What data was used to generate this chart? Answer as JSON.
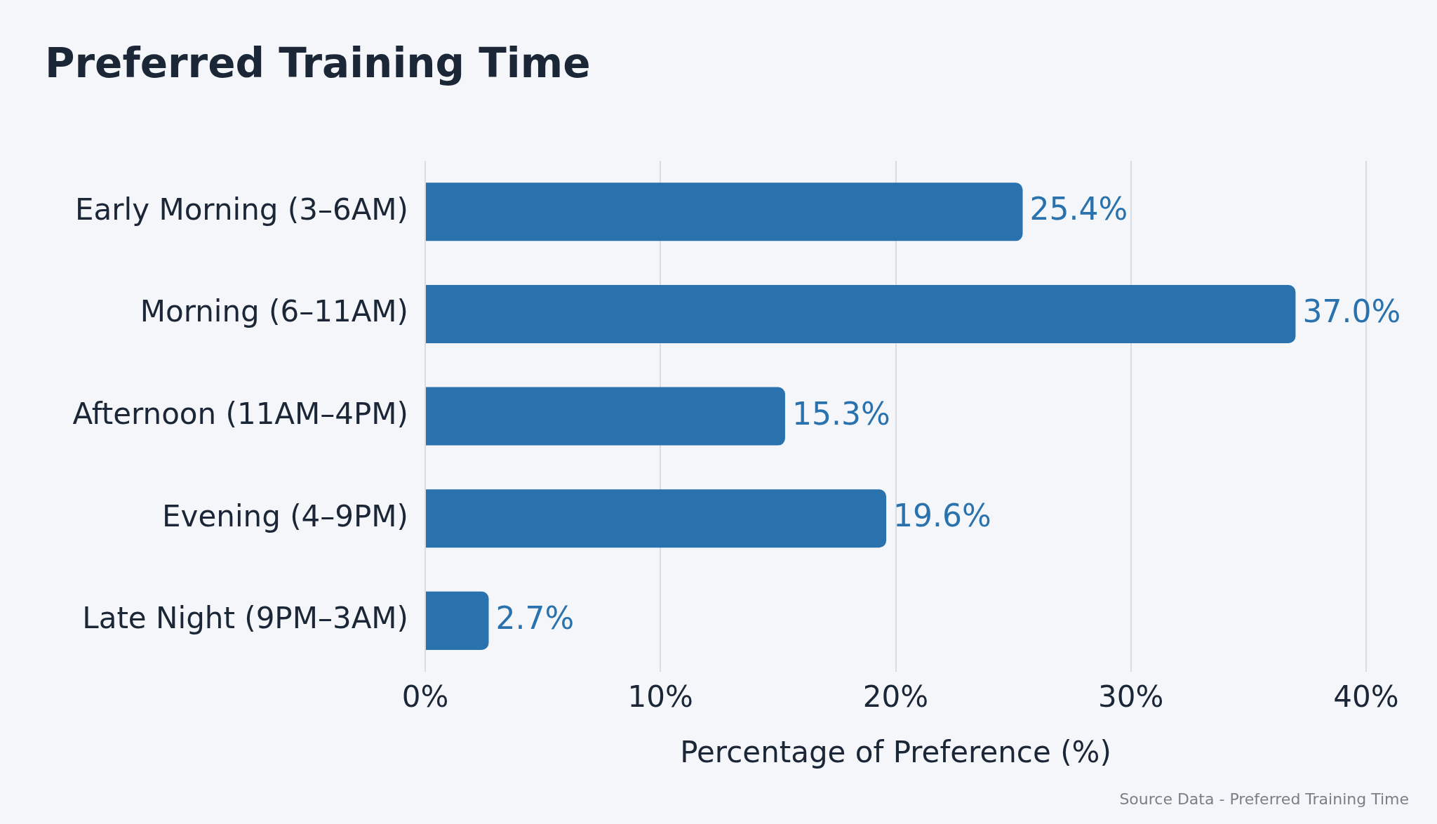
{
  "chart_data": {
    "type": "bar",
    "orientation": "horizontal",
    "title": "Preferred Training Time",
    "xlabel": "Percentage of Preference (%)",
    "categories": [
      "Early Morning (3–6AM)",
      "Morning (6–11AM)",
      "Afternoon (11AM–4PM)",
      "Evening (4–9PM)",
      "Late Night (9PM–3AM)"
    ],
    "values": [
      25.4,
      37.0,
      15.3,
      19.6,
      2.7
    ],
    "value_labels": [
      "25.4%",
      "37.0%",
      "15.3%",
      "19.6%",
      "2.7%"
    ],
    "color": "#2a72ae",
    "xlim": [
      0,
      40
    ],
    "xticks": [
      {
        "value": 0,
        "label": "0%"
      },
      {
        "value": 10,
        "label": "10%"
      },
      {
        "value": 20,
        "label": "20%"
      },
      {
        "value": 30,
        "label": "30%"
      },
      {
        "value": 40,
        "label": "40%"
      }
    ],
    "grid": "x",
    "legend": false,
    "annotations": [
      "Source Data - Preferred Training Time"
    ]
  }
}
